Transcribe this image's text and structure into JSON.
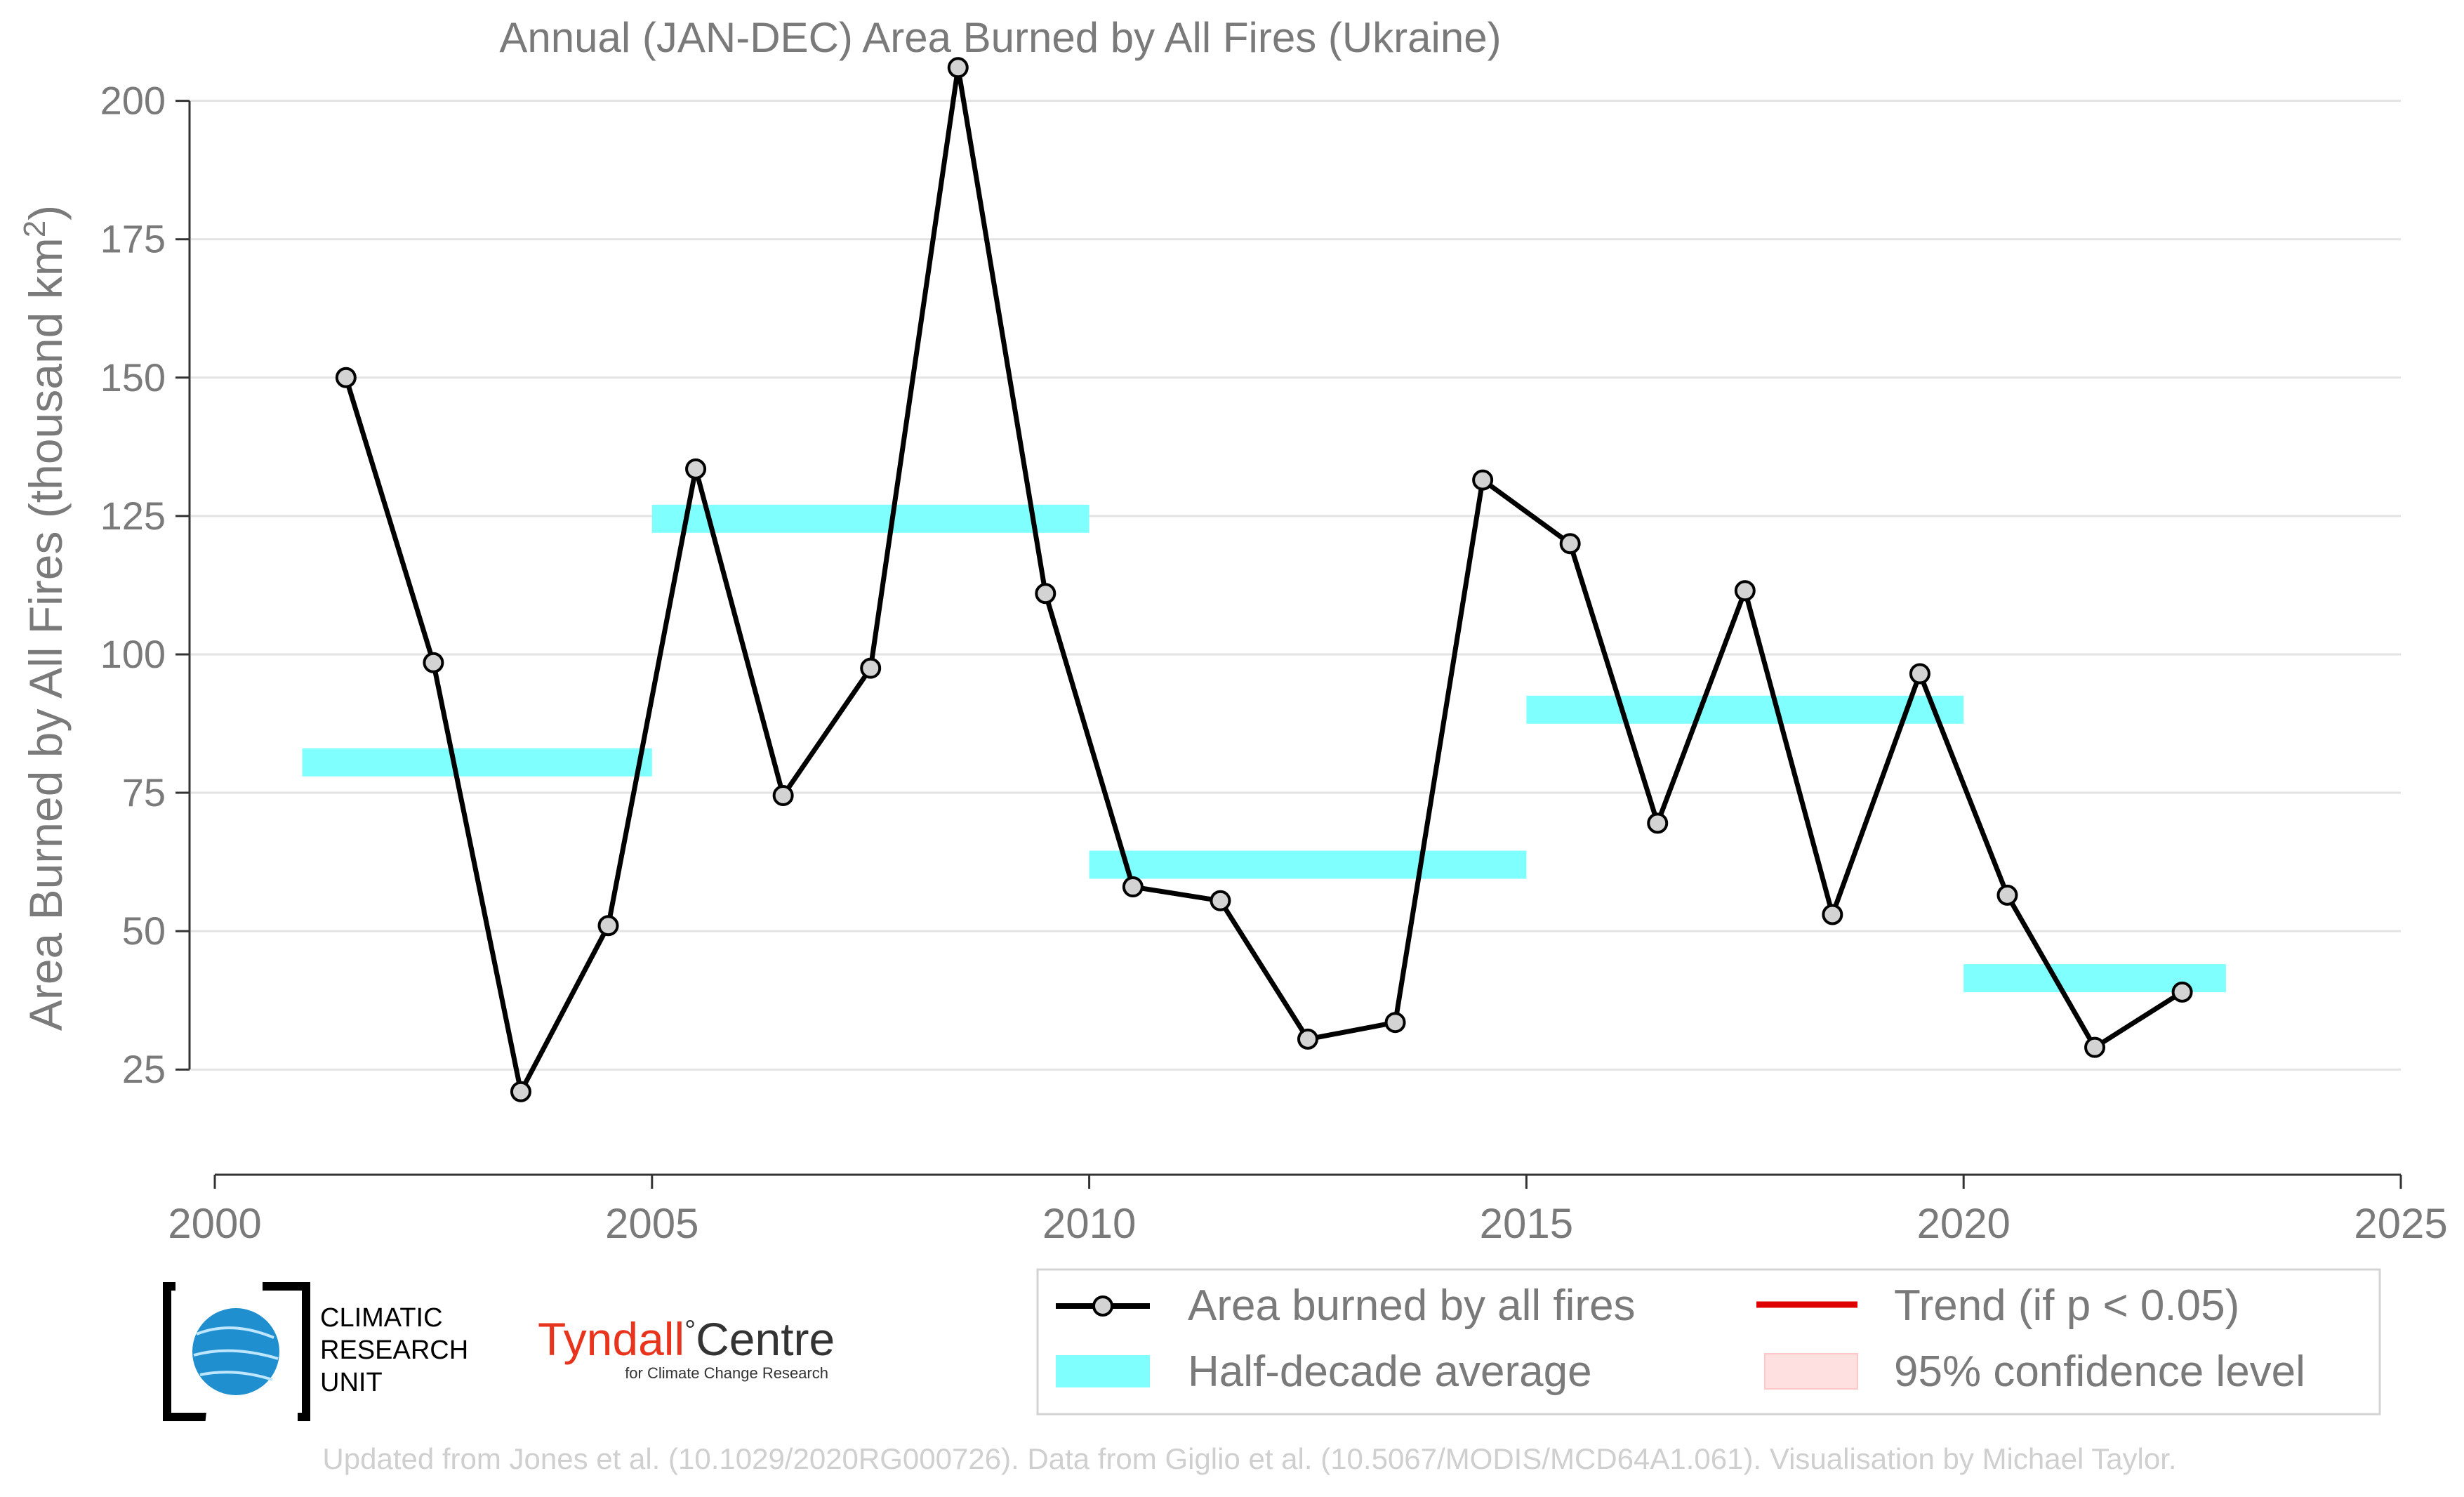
{
  "chart_data": {
    "type": "line",
    "title": "Annual (JAN-DEC) Area Burned by All Fires (Ukraine)",
    "ylabel": "Area Burned by All Fires (thousand km²)",
    "xlabel": "",
    "xlim": [
      2000,
      2025
    ],
    "ylim": [
      6,
      212
    ],
    "x_ticks": [
      "2000",
      "2005",
      "2010",
      "2015",
      "2020",
      "2025"
    ],
    "y_ticks": [
      "25",
      "50",
      "75",
      "100",
      "125",
      "150",
      "175",
      "200"
    ],
    "grid": "horizontal",
    "series": [
      {
        "name": "Area burned by all fires",
        "color": "#000000",
        "marker_fill": "#d3d3d3",
        "x": [
          2001.5,
          2002.5,
          2003.5,
          2004.5,
          2005.5,
          2006.5,
          2007.5,
          2008.5,
          2009.5,
          2010.5,
          2011.5,
          2012.5,
          2013.5,
          2014.5,
          2015.5,
          2016.5,
          2017.5,
          2018.5,
          2019.5,
          2020.5,
          2021.5,
          2022.5
        ],
        "y": [
          150,
          98.5,
          21,
          51,
          133.5,
          74.5,
          97.5,
          206,
          111,
          58,
          55.5,
          30.5,
          33.5,
          131.5,
          120,
          69.5,
          111.5,
          53,
          96.5,
          56.5,
          29,
          39
        ]
      }
    ],
    "half_decade_average": {
      "name": "Half-decade average",
      "color": "#80ffff",
      "segments": [
        {
          "x_start": 2001,
          "x_end": 2005,
          "value": 80.5
        },
        {
          "x_start": 2005,
          "x_end": 2010,
          "value": 124.5
        },
        {
          "x_start": 2010,
          "x_end": 2015,
          "value": 62
        },
        {
          "x_start": 2015,
          "x_end": 2020,
          "value": 90
        },
        {
          "x_start": 2020,
          "x_end": 2023,
          "value": 41.5
        }
      ]
    },
    "legend": {
      "placement": "bottom-right",
      "entries": [
        {
          "label": "Area burned by all fires",
          "color": "#000000",
          "kind": "line-marker"
        },
        {
          "label": "Trend (if p < 0.05)",
          "color": "#e00000",
          "kind": "line"
        },
        {
          "label": "Half-decade average",
          "color": "#80ffff",
          "kind": "band"
        },
        {
          "label": "95% confidence level",
          "color": "#ffe0e0",
          "kind": "band"
        }
      ]
    }
  },
  "logos": {
    "cru": {
      "line1": "CLIMATIC",
      "line2": "RESEARCH",
      "line3": "UNIT"
    },
    "tyndall": {
      "name": "Tyndall",
      "degree": "°",
      "centre": "Centre",
      "sub": "for Climate Change Research"
    }
  },
  "footer": "Updated from Jones et al. (10.1029/2020RG000726). Data from Giglio et al. (10.5067/MODIS/MCD64A1.061). Visualisation by Michael Taylor."
}
